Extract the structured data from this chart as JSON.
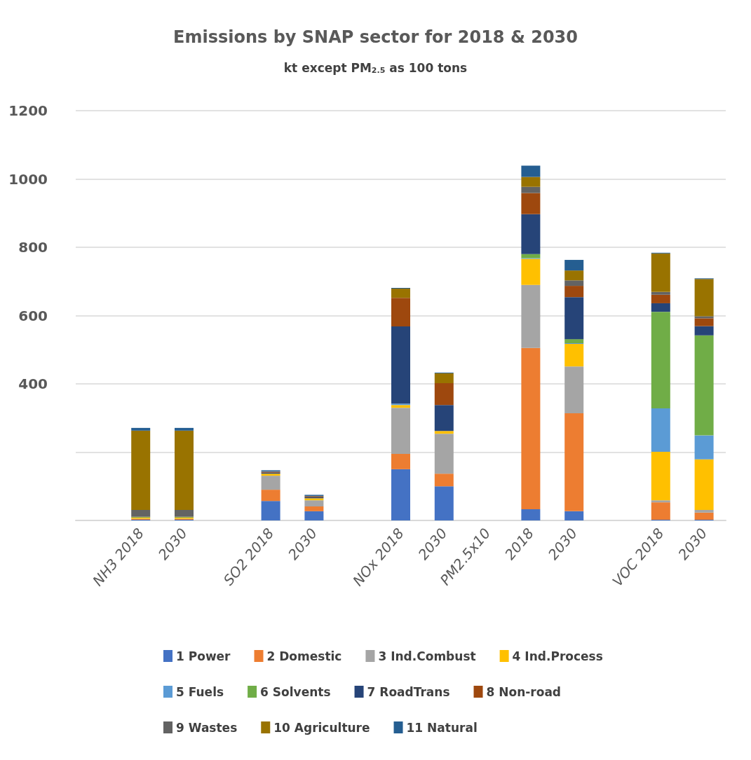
{
  "chart_data": {
    "type": "bar",
    "stacked": true,
    "title": "Emissions by SNAP sector for 2018 & 2030",
    "subtitle": "kt except PM$_{2.5}$ as 100 tons",
    "categories": [
      null,
      "NH3 2018",
      "2030",
      null,
      "SO2 2018",
      "2030",
      null,
      "NOx 2018",
      "2030",
      "PM2.5x10",
      "2018",
      "2030",
      null,
      "VOC 2018",
      "2030"
    ],
    "ylim": [
      0,
      1200
    ],
    "yticks": [
      {
        "value": 0,
        "label": null
      },
      {
        "value": 200,
        "label": null
      },
      400,
      600,
      800,
      1000,
      1200
    ],
    "grid": "y",
    "legend": "bottom",
    "series": [
      {
        "name": "1 Power",
        "color": "#4472c4",
        "values": [
          null,
          2,
          2,
          null,
          57,
          27,
          null,
          150,
          100,
          null,
          33,
          27,
          null,
          2,
          2
        ]
      },
      {
        "name": "2 Domestic",
        "color": "#ed7d31",
        "values": [
          null,
          3,
          3,
          null,
          33,
          14,
          null,
          45,
          37,
          null,
          472,
          287,
          null,
          51,
          21
        ]
      },
      {
        "name": "3 Ind.Combust",
        "color": "#a5a5a5",
        "values": [
          null,
          null,
          null,
          null,
          41,
          18,
          null,
          135,
          117,
          null,
          185,
          137,
          null,
          6,
          8
        ]
      },
      {
        "name": "4 Ind.Process",
        "color": "#ffc000",
        "values": [
          null,
          3,
          3,
          null,
          6,
          6,
          null,
          8,
          8,
          null,
          76,
          66,
          null,
          142,
          148
        ]
      },
      {
        "name": "5 Fuels",
        "color": "#5b9bd5",
        "values": [
          null,
          null,
          null,
          null,
          null,
          null,
          null,
          4,
          null,
          null,
          2,
          2,
          null,
          127,
          70
        ]
      },
      {
        "name": "6 Solvents",
        "color": "#70ad47",
        "values": [
          null,
          2,
          2,
          null,
          null,
          null,
          null,
          null,
          null,
          null,
          12,
          12,
          null,
          283,
          293
        ]
      },
      {
        "name": "7 RoadTrans",
        "color": "#264478",
        "values": [
          null,
          null,
          null,
          null,
          3,
          3,
          null,
          226,
          76,
          null,
          117,
          123,
          null,
          25,
          27
        ]
      },
      {
        "name": "8 Non-road",
        "color": "#9e480e",
        "values": [
          null,
          1,
          1,
          null,
          2,
          2,
          null,
          84,
          64,
          null,
          62,
          33,
          null,
          25,
          23
        ]
      },
      {
        "name": "9 Wastes",
        "color": "#636363",
        "values": [
          null,
          20,
          20,
          null,
          2,
          2,
          null,
          null,
          null,
          null,
          18,
          16,
          null,
          8,
          6
        ]
      },
      {
        "name": "10 Agriculture",
        "color": "#997300",
        "values": [
          null,
          232,
          232,
          null,
          null,
          null,
          null,
          27,
          29,
          null,
          29,
          29,
          null,
          113,
          109
        ]
      },
      {
        "name": "11 Natural",
        "color": "#255e91",
        "values": [
          null,
          8,
          8,
          null,
          3,
          3,
          null,
          2,
          2,
          null,
          33,
          31,
          null,
          2,
          2
        ]
      }
    ]
  }
}
